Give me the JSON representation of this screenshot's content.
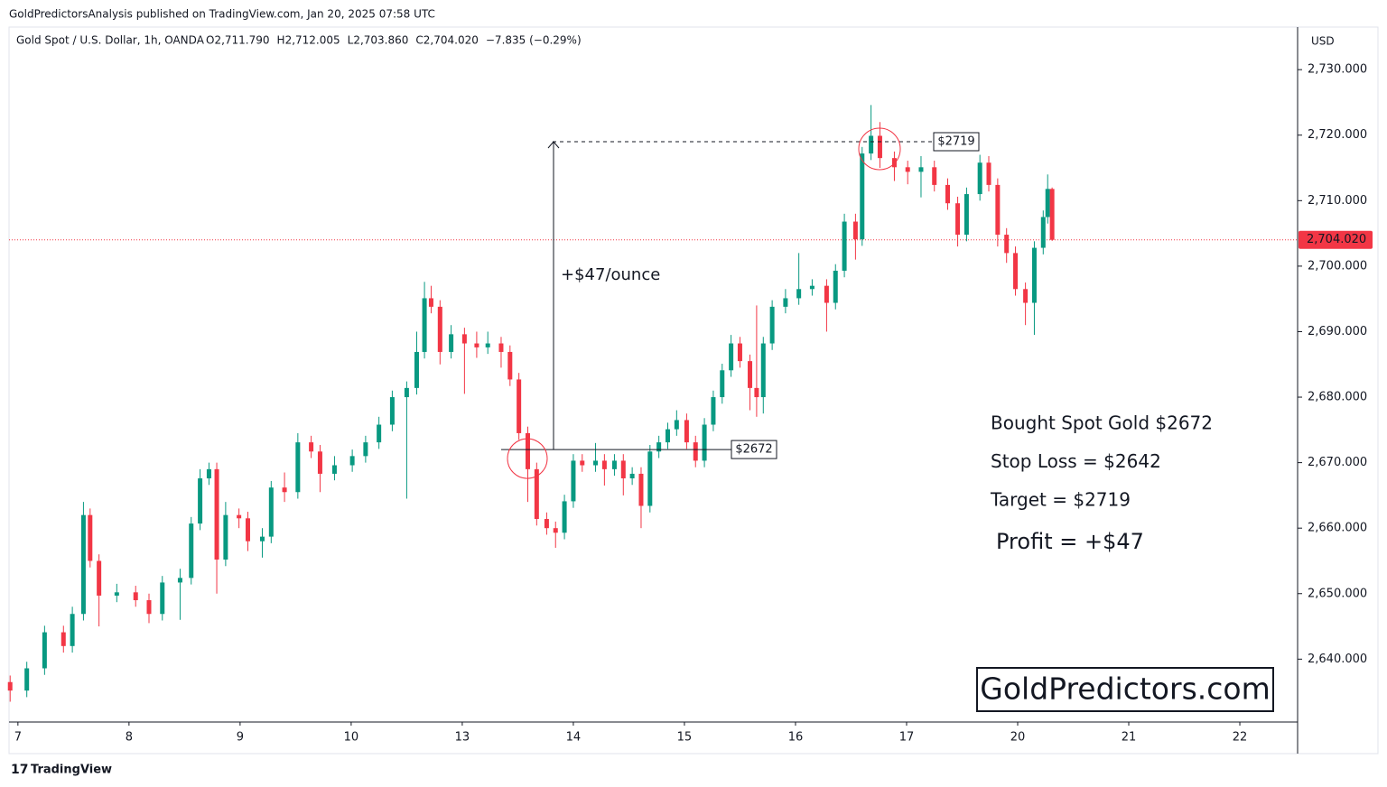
{
  "header": {
    "publisher": "GoldPredictorsAnalysis published on TradingView.com, Jan 20, 2025 07:58 UTC",
    "symbol": "Gold Spot / U.S. Dollar, 1h, OANDA",
    "ohlc": [
      {
        "key": "O",
        "label": "2,711.790"
      },
      {
        "key": "H",
        "label": "2,712.005"
      },
      {
        "key": "L",
        "label": "2,703.860"
      },
      {
        "key": "C",
        "label": "2,704.020"
      }
    ],
    "change": "−7.835 (−0.29%)"
  },
  "footer": {
    "brand": "TradingView"
  },
  "chart_data": {
    "type": "candlestick",
    "currency": "USD",
    "up_color": "#089981",
    "down_color": "#f23645",
    "xlim": [
      -0.08,
      11.52
    ],
    "ylim": [
      2630.4,
      2736.5
    ],
    "xticks": [
      {
        "value": 0,
        "label": "7"
      },
      {
        "value": 1,
        "label": "8"
      },
      {
        "value": 2,
        "label": "9"
      },
      {
        "value": 3,
        "label": "10"
      },
      {
        "value": 4,
        "label": "13"
      },
      {
        "value": 5,
        "label": "14"
      },
      {
        "value": 6,
        "label": "15"
      },
      {
        "value": 7,
        "label": "16"
      },
      {
        "value": 8,
        "label": "17"
      },
      {
        "value": 9,
        "label": "20"
      },
      {
        "value": 10,
        "label": "21"
      },
      {
        "value": 11,
        "label": "22"
      }
    ],
    "yticks": [
      {
        "value": 2640,
        "label": "2,640.000"
      },
      {
        "value": 2650,
        "label": "2,650.000"
      },
      {
        "value": 2660,
        "label": "2,660.000"
      },
      {
        "value": 2670,
        "label": "2,670.000"
      },
      {
        "value": 2680,
        "label": "2,680.000"
      },
      {
        "value": 2690,
        "label": "2,690.000"
      },
      {
        "value": 2700,
        "label": "2,700.000"
      },
      {
        "value": 2710,
        "label": "2,710.000"
      },
      {
        "value": 2720,
        "label": "2,720.000"
      },
      {
        "value": 2730,
        "label": "2,730.000"
      }
    ],
    "last_price": {
      "value": 2704.02,
      "label": "2,704.020",
      "color": "#f23645"
    },
    "x": [
      -0.07,
      0.08,
      0.24,
      0.41,
      0.49,
      0.59,
      0.65,
      0.73,
      0.89,
      1.06,
      1.18,
      1.3,
      1.46,
      1.56,
      1.64,
      1.72,
      1.79,
      1.87,
      1.99,
      2.07,
      2.2,
      2.28,
      2.4,
      2.52,
      2.64,
      2.72,
      2.85,
      3.01,
      3.13,
      3.25,
      3.37,
      3.5,
      3.59,
      3.66,
      3.72,
      3.8,
      3.9,
      4.02,
      4.13,
      4.23,
      4.35,
      4.43,
      4.51,
      4.59,
      4.67,
      4.76,
      4.84,
      4.92,
      5.0,
      5.08,
      5.2,
      5.28,
      5.37,
      5.45,
      5.53,
      5.61,
      5.69,
      5.77,
      5.85,
      5.93,
      6.02,
      6.1,
      6.18,
      6.26,
      6.34,
      6.42,
      6.5,
      6.59,
      6.65,
      6.71,
      6.79,
      6.91,
      7.03,
      7.15,
      7.28,
      7.36,
      7.44,
      7.54,
      7.6,
      7.68,
      7.76,
      7.89,
      8.01,
      8.13,
      8.25,
      8.37,
      8.46,
      8.54,
      8.66,
      8.74,
      8.82,
      8.9,
      8.98,
      9.07,
      9.15,
      9.23,
      9.27,
      9.31
    ],
    "open": [
      2636.5,
      2635.2,
      2638.6,
      2644.1,
      2642.0,
      2646.9,
      2662.0,
      2655.0,
      2649.7,
      2650.2,
      2649.0,
      2646.9,
      2651.7,
      2652.4,
      2660.7,
      2667.6,
      2669.0,
      2655.2,
      2662.0,
      2661.5,
      2658.0,
      2658.7,
      2666.2,
      2665.5,
      2673.1,
      2671.7,
      2668.3,
      2669.6,
      2671.0,
      2673.1,
      2675.8,
      2680.0,
      2681.4,
      2686.9,
      2695.1,
      2693.8,
      2686.9,
      2689.6,
      2688.2,
      2687.6,
      2688.2,
      2686.9,
      2682.7,
      2674.5,
      2669.0,
      2661.4,
      2660.0,
      2659.3,
      2664.1,
      2670.3,
      2669.6,
      2670.3,
      2669.0,
      2670.3,
      2667.6,
      2668.3,
      2663.4,
      2671.7,
      2673.1,
      2675.1,
      2676.5,
      2673.1,
      2670.3,
      2675.8,
      2680.0,
      2684.1,
      2688.2,
      2685.5,
      2681.4,
      2680.0,
      2688.2,
      2693.8,
      2695.1,
      2696.5,
      2697.0,
      2694.4,
      2699.3,
      2706.8,
      2704.1,
      2717.2,
      2719.9,
      2716.5,
      2715.1,
      2714.4,
      2715.1,
      2712.4,
      2709.6,
      2704.8,
      2711.0,
      2715.8,
      2712.4,
      2704.8,
      2702.0,
      2696.5,
      2694.4,
      2702.8,
      2707.5,
      2711.79
    ],
    "high": [
      2637.5,
      2639.6,
      2645.1,
      2645.1,
      2648.0,
      2664.0,
      2663.0,
      2656.0,
      2651.5,
      2651.2,
      2650.0,
      2652.7,
      2653.8,
      2661.7,
      2669.0,
      2670.0,
      2670.0,
      2664.0,
      2663.0,
      2662.5,
      2660.0,
      2667.2,
      2668.5,
      2674.5,
      2674.1,
      2672.7,
      2671.0,
      2672.0,
      2674.1,
      2677.0,
      2681.0,
      2682.4,
      2690.0,
      2697.6,
      2697.0,
      2694.8,
      2691.0,
      2690.6,
      2690.0,
      2690.0,
      2689.2,
      2687.9,
      2683.7,
      2675.5,
      2670.0,
      2662.4,
      2661.0,
      2665.1,
      2671.3,
      2671.3,
      2673.0,
      2671.3,
      2671.3,
      2671.3,
      2669.3,
      2669.3,
      2672.7,
      2674.1,
      2676.1,
      2678.0,
      2677.5,
      2674.1,
      2676.8,
      2681.0,
      2685.1,
      2689.5,
      2689.2,
      2686.5,
      2694.0,
      2689.2,
      2694.8,
      2696.5,
      2702.0,
      2698.0,
      2698.0,
      2700.3,
      2708.0,
      2708.0,
      2718.2,
      2724.6,
      2722.0,
      2717.5,
      2716.1,
      2716.8,
      2716.1,
      2713.4,
      2710.6,
      2712.0,
      2717.0,
      2716.8,
      2713.4,
      2705.8,
      2703.0,
      2697.5,
      2703.8,
      2708.5,
      2714.0,
      2712.005
    ],
    "low": [
      2633.5,
      2634.2,
      2637.6,
      2641.0,
      2641.0,
      2645.9,
      2654.0,
      2645.0,
      2648.7,
      2648.0,
      2645.5,
      2645.9,
      2646.0,
      2651.4,
      2659.7,
      2666.6,
      2650.0,
      2654.2,
      2660.0,
      2656.5,
      2655.5,
      2657.7,
      2664.0,
      2664.5,
      2670.7,
      2665.5,
      2667.3,
      2668.6,
      2670.0,
      2672.1,
      2674.8,
      2664.5,
      2680.4,
      2685.9,
      2692.8,
      2685.0,
      2685.9,
      2680.5,
      2686.0,
      2686.6,
      2684.5,
      2681.7,
      2673.5,
      2664.0,
      2660.4,
      2659.0,
      2657.0,
      2658.3,
      2663.1,
      2668.6,
      2668.6,
      2666.5,
      2668.0,
      2665.0,
      2666.6,
      2660.0,
      2662.4,
      2670.7,
      2672.1,
      2674.1,
      2672.1,
      2669.3,
      2669.3,
      2674.8,
      2679.0,
      2683.1,
      2684.5,
      2678.0,
      2677.0,
      2677.5,
      2687.2,
      2692.8,
      2694.1,
      2695.5,
      2690.0,
      2693.4,
      2698.3,
      2701.0,
      2703.1,
      2716.2,
      2715.0,
      2713.0,
      2712.5,
      2710.5,
      2711.4,
      2708.6,
      2703.0,
      2703.8,
      2710.0,
      2711.4,
      2703.0,
      2700.5,
      2695.5,
      2691.0,
      2689.5,
      2701.8,
      2706.5,
      2703.86
    ],
    "close": [
      2635.2,
      2638.6,
      2644.1,
      2642.0,
      2646.9,
      2662.0,
      2655.0,
      2649.7,
      2650.2,
      2649.0,
      2646.9,
      2651.7,
      2652.4,
      2660.7,
      2667.6,
      2669.0,
      2655.2,
      2662.0,
      2661.5,
      2658.0,
      2658.7,
      2666.2,
      2665.5,
      2673.1,
      2671.7,
      2668.3,
      2669.6,
      2671.0,
      2673.1,
      2675.8,
      2680.0,
      2681.4,
      2686.9,
      2695.1,
      2693.8,
      2686.9,
      2689.6,
      2688.2,
      2687.6,
      2688.2,
      2686.9,
      2682.7,
      2674.5,
      2669.0,
      2661.4,
      2660.0,
      2659.3,
      2664.1,
      2670.3,
      2669.6,
      2670.3,
      2669.0,
      2670.3,
      2667.6,
      2668.3,
      2663.4,
      2671.7,
      2673.1,
      2675.1,
      2676.5,
      2673.1,
      2670.3,
      2675.8,
      2680.0,
      2684.1,
      2688.2,
      2685.5,
      2681.4,
      2680.0,
      2688.2,
      2693.8,
      2695.1,
      2696.5,
      2697.0,
      2694.4,
      2699.3,
      2706.8,
      2704.1,
      2717.2,
      2719.9,
      2716.5,
      2715.1,
      2714.4,
      2715.1,
      2712.4,
      2709.6,
      2704.8,
      2711.0,
      2715.8,
      2712.4,
      2704.8,
      2702.0,
      2696.5,
      2694.4,
      2702.8,
      2707.5,
      2711.79,
      2704.02
    ],
    "entry": {
      "value": 2672,
      "label": "$2672"
    },
    "target": {
      "value": 2719,
      "label": "$2719"
    },
    "move_label": "+$47/ounce",
    "notes": [
      "Bought Spot Gold $2672",
      "Stop Loss = $2642",
      "Target = $2719"
    ],
    "profit": "Profit = +$47",
    "watermark": "GoldPredictors.com"
  }
}
